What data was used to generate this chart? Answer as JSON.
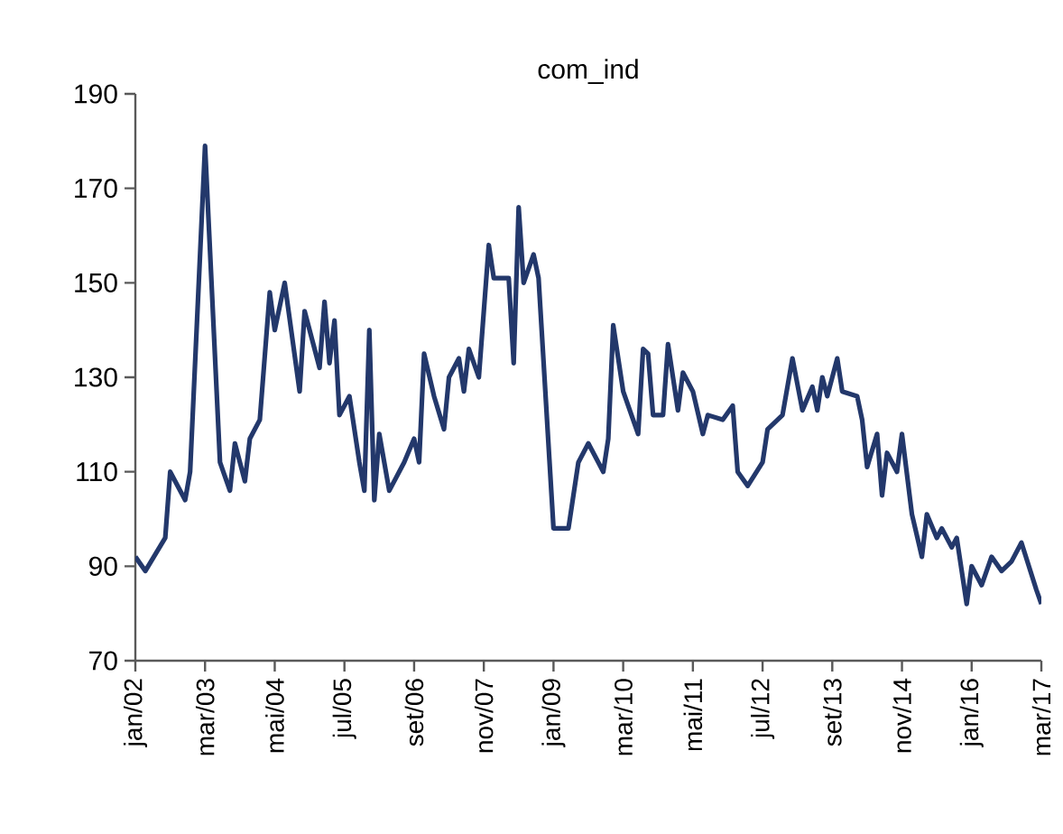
{
  "chart_data": {
    "type": "line",
    "title": "com_ind",
    "color": "#23386b",
    "line_style": "solid",
    "x": [
      "2002-01",
      "2002-03",
      "2002-07",
      "2002-08",
      "2002-11",
      "2002-12",
      "2003-03",
      "2003-06",
      "2003-08",
      "2003-09",
      "2003-11",
      "2003-12",
      "2004-02",
      "2004-04",
      "2004-05",
      "2004-07",
      "2004-10",
      "2004-11",
      "2005-02",
      "2005-03",
      "2005-04",
      "2005-05",
      "2005-06",
      "2005-08",
      "2005-10",
      "2005-11",
      "2005-12",
      "2006-01",
      "2006-02",
      "2006-04",
      "2006-07",
      "2006-09",
      "2006-10",
      "2006-11",
      "2007-01",
      "2007-03",
      "2007-04",
      "2007-06",
      "2007-07",
      "2007-08",
      "2007-10",
      "2007-12",
      "2008-01",
      "2008-04",
      "2008-05",
      "2008-06",
      "2008-07",
      "2008-09",
      "2008-10",
      "2009-01",
      "2009-04",
      "2009-06",
      "2009-08",
      "2009-11",
      "2009-12",
      "2010-01",
      "2010-03",
      "2010-06",
      "2010-07",
      "2010-08",
      "2010-09",
      "2010-11",
      "2010-12",
      "2011-02",
      "2011-03",
      "2011-05",
      "2011-07",
      "2011-08",
      "2011-11",
      "2012-01",
      "2012-02",
      "2012-04",
      "2012-07",
      "2012-08",
      "2012-11",
      "2013-01",
      "2013-03",
      "2013-05",
      "2013-06",
      "2013-07",
      "2013-08",
      "2013-10",
      "2013-11",
      "2014-02",
      "2014-03",
      "2014-04",
      "2014-06",
      "2014-07",
      "2014-08",
      "2014-10",
      "2014-11",
      "2015-01",
      "2015-03",
      "2015-04",
      "2015-06",
      "2015-07",
      "2015-09",
      "2015-10",
      "2015-12",
      "2016-01",
      "2016-03",
      "2016-05",
      "2016-07",
      "2016-09",
      "2016-11",
      "2017-02",
      "2017-03"
    ],
    "values": [
      92,
      89,
      96,
      110,
      104,
      110,
      179,
      112,
      106,
      116,
      108,
      117,
      121,
      148,
      140,
      150,
      127,
      144,
      132,
      146,
      133,
      142,
      122,
      126,
      112,
      106,
      140,
      104,
      118,
      106,
      112,
      117,
      112,
      135,
      126,
      119,
      130,
      134,
      127,
      136,
      130,
      158,
      151,
      151,
      133,
      166,
      150,
      156,
      151,
      98,
      98,
      112,
      116,
      110,
      117,
      141,
      127,
      118,
      136,
      135,
      122,
      122,
      137,
      123,
      131,
      127,
      118,
      122,
      121,
      124,
      110,
      107,
      112,
      119,
      122,
      134,
      123,
      128,
      123,
      130,
      126,
      134,
      127,
      126,
      121,
      111,
      118,
      105,
      114,
      110,
      118,
      101,
      92,
      101,
      96,
      98,
      94,
      96,
      82,
      90,
      86,
      92,
      89,
      91,
      95,
      85,
      82
    ],
    "xlim": [
      "2002-01",
      "2017-03"
    ],
    "xticks": [
      {
        "value": "2002-01",
        "label": "jan/02"
      },
      {
        "value": "2003-03",
        "label": "mar/03"
      },
      {
        "value": "2004-05",
        "label": "mai/04"
      },
      {
        "value": "2005-07",
        "label": "jul/05"
      },
      {
        "value": "2006-09",
        "label": "set/06"
      },
      {
        "value": "2007-11",
        "label": "nov/07"
      },
      {
        "value": "2009-01",
        "label": "jan/09"
      },
      {
        "value": "2010-03",
        "label": "mar/10"
      },
      {
        "value": "2011-05",
        "label": "mai/11"
      },
      {
        "value": "2012-07",
        "label": "jul/12"
      },
      {
        "value": "2013-09",
        "label": "set/13"
      },
      {
        "value": "2014-11",
        "label": "nov/14"
      },
      {
        "value": "2016-01",
        "label": "jan/16"
      },
      {
        "value": "2017-03",
        "label": "mar/17"
      }
    ],
    "ylim": [
      70,
      190
    ],
    "yticks": [
      70,
      90,
      110,
      130,
      150,
      170,
      190
    ],
    "grid": false
  }
}
